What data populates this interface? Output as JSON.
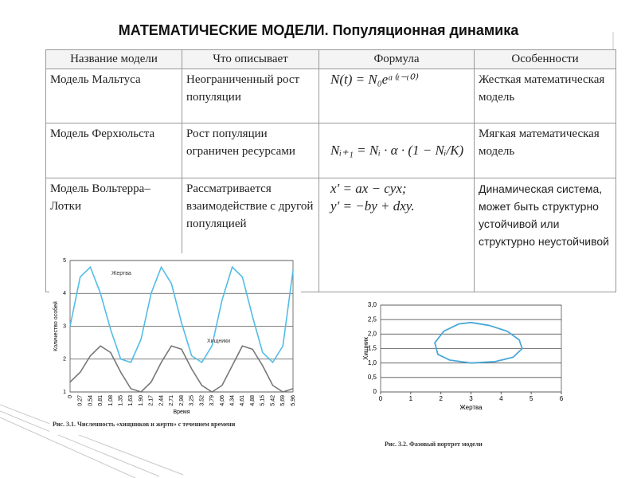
{
  "header": {
    "title": "МАТЕМАТИЧЕСКИЕ МОДЕЛИ. Популяционная динамика"
  },
  "table": {
    "columns": [
      "Название модели",
      "Что описывает",
      "Формула",
      "Особенности"
    ],
    "rows": [
      [
        "Модель Мальтуса",
        "Неограниченный рост популяции",
        [
          "N(t) = N₀eᵅ⁽ᵗ⁻ᵗ⁰⁾"
        ],
        "Жесткая математическая модель"
      ],
      [
        "Модель Ферхюльста",
        "Рост популяции ограничен ресурсами",
        [
          "Nᵢ₊₁ = Nᵢ · α · (1 − Nᵢ/K)"
        ],
        "Мягкая математическая модель"
      ],
      [
        "Модель Вольтерра–Лотки",
        "Рассматривается взаимодействие с другой популяцией",
        [
          "x′ = ax − cyx;",
          "y′ = −by + dxy."
        ],
        "Динамическая система, может быть структурно устойчивой или структурно неустойчивой"
      ]
    ]
  },
  "chart_data": [
    {
      "type": "line",
      "caption": "Рис. 3.1. Численность «хищников и жертв» с течением времени",
      "x_label": "Время",
      "y_label": "Количество особей",
      "categories": [
        "0",
        "0,27",
        "0,54",
        "0,81",
        "1,08",
        "1,35",
        "1,63",
        "1,90",
        "2,17",
        "2,44",
        "2,71",
        "2,98",
        "3,25",
        "3,52",
        "3,79",
        "4,06",
        "4,34",
        "4,61",
        "4,88",
        "5,15",
        "5,42",
        "5,69",
        "5,96"
      ],
      "series": [
        {
          "name": "Жертва",
          "color": "#52bde6",
          "values": [
            3.0,
            4.5,
            4.8,
            4.0,
            2.9,
            2.0,
            1.9,
            2.6,
            4.0,
            4.8,
            4.3,
            3.1,
            2.1,
            1.9,
            2.4,
            3.8,
            4.8,
            4.5,
            3.3,
            2.2,
            1.9,
            2.4,
            4.7
          ]
        },
        {
          "name": "Хищники",
          "color": "#777777",
          "values": [
            1.3,
            1.6,
            2.1,
            2.4,
            2.2,
            1.6,
            1.1,
            1.0,
            1.3,
            1.9,
            2.4,
            2.3,
            1.7,
            1.2,
            1.0,
            1.2,
            1.8,
            2.4,
            2.3,
            1.8,
            1.2,
            1.0,
            1.1
          ]
        }
      ],
      "ylim": [
        1,
        5
      ],
      "yticks": [
        1,
        2,
        3,
        4,
        5
      ],
      "grid": true
    },
    {
      "type": "line",
      "caption": "Рис. 3.2. Фазовый портрет модели",
      "x_label": "Жертва",
      "y_label": "Хищник",
      "x": [
        1.8,
        2.1,
        2.6,
        3.0,
        3.6,
        4.2,
        4.6,
        4.7,
        4.4,
        3.8,
        3.0,
        2.3,
        1.9,
        1.8
      ],
      "values": [
        1.7,
        2.1,
        2.35,
        2.4,
        2.3,
        2.1,
        1.8,
        1.5,
        1.2,
        1.05,
        1.0,
        1.1,
        1.3,
        1.7
      ],
      "color": "#4aa8d8",
      "xlim": [
        0,
        6
      ],
      "xticks": [
        0,
        1,
        2,
        3,
        4,
        5,
        6
      ],
      "ylim": [
        0,
        3
      ],
      "yticks": [
        0,
        {
          "value": 0.5,
          "label": "0,5"
        },
        {
          "value": 1,
          "label": "1,0"
        },
        {
          "value": 1.5,
          "label": "1,5"
        },
        {
          "value": 2,
          "label": "2,0"
        },
        {
          "value": 2.5,
          "label": "2,5"
        },
        {
          "value": 3,
          "label": "3,0"
        }
      ],
      "grid": true
    }
  ]
}
